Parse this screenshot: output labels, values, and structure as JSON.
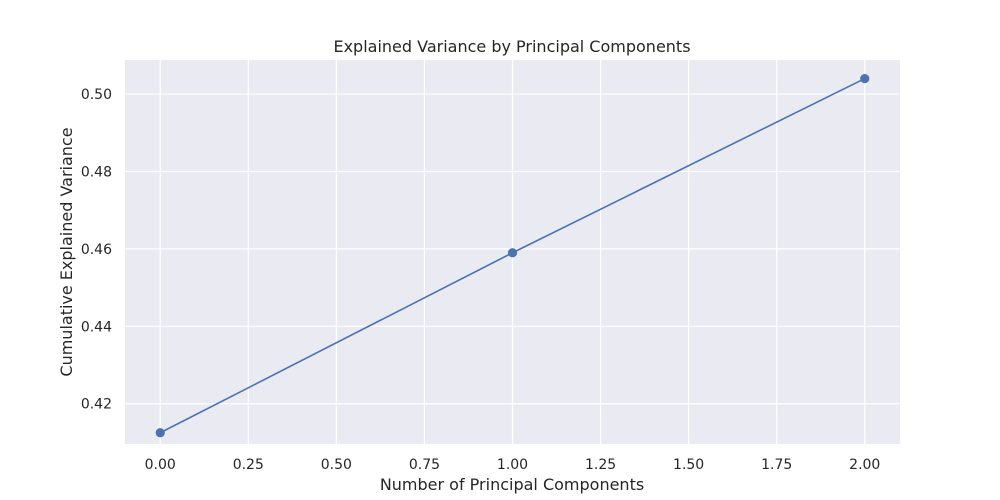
{
  "chart_data": {
    "type": "line",
    "title": "Explained Variance by Principal Components",
    "xlabel": "Number of Principal Components",
    "ylabel": "Cumulative Explained Variance",
    "xlim": [
      -0.1,
      2.1
    ],
    "ylim": [
      0.4096,
      0.5088
    ],
    "xticks": [
      0.0,
      0.25,
      0.5,
      0.75,
      1.0,
      1.25,
      1.5,
      1.75,
      2.0
    ],
    "xtick_labels": [
      "0.00",
      "0.25",
      "0.50",
      "0.75",
      "1.00",
      "1.25",
      "1.50",
      "1.75",
      "2.00"
    ],
    "yticks": [
      0.42,
      0.44,
      0.46,
      0.48,
      0.5
    ],
    "ytick_labels": [
      "0.42",
      "0.44",
      "0.46",
      "0.48",
      "0.50"
    ],
    "grid": true,
    "series": [
      {
        "x": [
          0,
          1,
          2
        ],
        "values": [
          0.4125,
          0.459,
          0.504
        ],
        "color": "#4c72b0",
        "marker": "circle"
      }
    ],
    "colors": {
      "plot_background": "#eaeaf2",
      "grid": "#ffffff",
      "text": "#262626"
    }
  }
}
